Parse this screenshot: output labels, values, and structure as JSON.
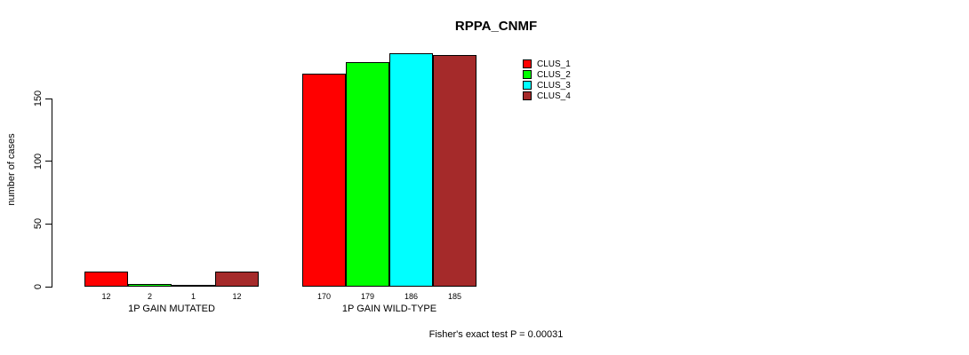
{
  "title": "RPPA_CNMF",
  "ylabel": "number of cases",
  "footer": "Fisher's exact test P = 0.00031",
  "legend": {
    "entries": [
      {
        "label": "CLUS_1",
        "color": "#FF0000"
      },
      {
        "label": "CLUS_2",
        "color": "#00FF00"
      },
      {
        "label": "CLUS_3",
        "color": "#00FFFF"
      },
      {
        "label": "CLUS_4",
        "color": "#A52A2A"
      }
    ]
  },
  "chart_data": {
    "type": "bar",
    "title": "RPPA_CNMF",
    "xlabel": "",
    "ylabel": "number of cases",
    "ylim": [
      0,
      150
    ],
    "yticks": [
      0,
      50,
      100,
      150
    ],
    "grid": false,
    "legend_position": "top-right",
    "categories": [
      "1P GAIN MUTATED",
      "1P GAIN WILD-TYPE"
    ],
    "series": [
      {
        "name": "CLUS_1",
        "color": "#FF0000",
        "values": [
          12,
          170
        ]
      },
      {
        "name": "CLUS_2",
        "color": "#00FF00",
        "values": [
          2,
          179
        ]
      },
      {
        "name": "CLUS_3",
        "color": "#00FFFF",
        "values": [
          1,
          186
        ]
      },
      {
        "name": "CLUS_4",
        "color": "#A52A2A",
        "values": [
          12,
          185
        ]
      }
    ],
    "bar_value_labels": [
      [
        12,
        2,
        1,
        12
      ],
      [
        170,
        179,
        186,
        185
      ]
    ],
    "annotation": "Fisher's exact test P = 0.00031"
  }
}
